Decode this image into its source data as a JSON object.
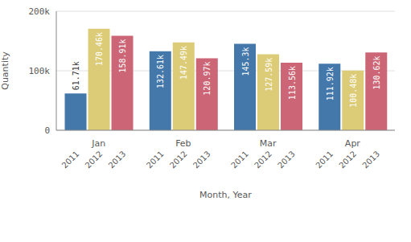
{
  "chart_data": {
    "type": "bar",
    "x_label": "Month, Year",
    "y_label": "Quantity",
    "categories": [
      "Jan",
      "Feb",
      "Mar",
      "Apr"
    ],
    "series": [
      {
        "name": "2011",
        "color": "#4477aa",
        "values": [
          61710,
          132610,
          145300,
          111920
        ],
        "value_labels": [
          "61.71k",
          "132.61k",
          "145.3k",
          "111.92k"
        ]
      },
      {
        "name": "2012",
        "color": "#ddcc77",
        "values": [
          170460,
          147490,
          127590,
          100480
        ],
        "value_labels": [
          "170.46k",
          "147.49k",
          "127.59k",
          "100.48k"
        ]
      },
      {
        "name": "2013",
        "color": "#cc6677",
        "values": [
          158910,
          120970,
          113560,
          130620
        ],
        "value_labels": [
          "158.91k",
          "120.97k",
          "113.56k",
          "130.62k"
        ]
      }
    ],
    "ylim": [
      0,
      200000
    ],
    "yticks": [
      0,
      {
        "value": 100000,
        "label": "100k"
      },
      {
        "value": 200000,
        "label": "200k"
      }
    ],
    "grid": true,
    "data_labels": true,
    "legend": "none"
  }
}
